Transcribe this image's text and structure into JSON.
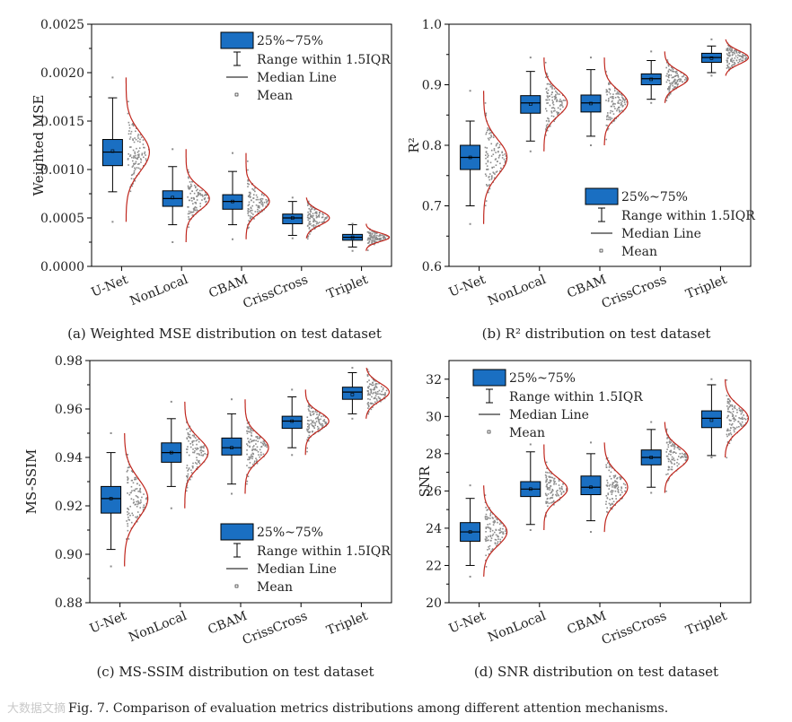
{
  "figure_caption": "Fig. 7.  Comparison of evaluation metrics distributions among different attention mechanisms.",
  "watermark": "大数据文摘",
  "legend": {
    "box_label": "25%~75%",
    "range_label": "Range within 1.5IQR",
    "median_label": "Median Line",
    "mean_label": "Mean"
  },
  "colors": {
    "box": "#1a6fc2",
    "curve": "#c0271e",
    "points": "#8c8c8c"
  },
  "chart_data": [
    {
      "type": "box",
      "id": "a",
      "caption": "(a) Weighted MSE distribution on test dataset",
      "ylabel": "Weighted MSE",
      "categories": [
        "U-Net",
        "NonLocal",
        "CBAM",
        "CrissCross",
        "Triplet"
      ],
      "ylim": [
        0,
        0.0025
      ],
      "yticks": [
        "0.0000",
        "0.0005",
        "0.0010",
        "0.0015",
        "0.0020",
        "0.0025"
      ],
      "legend_position": "top-right",
      "series": [
        {
          "name": "U-Net",
          "whisker_low": 0.00077,
          "q1": 0.00104,
          "median": 0.00118,
          "q3": 0.00131,
          "whisker_high": 0.00174,
          "mean": 0.00119,
          "dist_min": 0.00046,
          "dist_max": 0.00195
        },
        {
          "name": "NonLocal",
          "whisker_low": 0.00043,
          "q1": 0.00062,
          "median": 0.0007,
          "q3": 0.00078,
          "whisker_high": 0.00103,
          "mean": 0.00071,
          "dist_min": 0.00025,
          "dist_max": 0.00121
        },
        {
          "name": "CBAM",
          "whisker_low": 0.00043,
          "q1": 0.00059,
          "median": 0.00067,
          "q3": 0.00074,
          "whisker_high": 0.00098,
          "mean": 0.00067,
          "dist_min": 0.00028,
          "dist_max": 0.00117
        },
        {
          "name": "CrissCross",
          "whisker_low": 0.00032,
          "q1": 0.00044,
          "median": 0.0005,
          "q3": 0.00054,
          "whisker_high": 0.00067,
          "mean": 0.0005,
          "dist_min": 0.00029,
          "dist_max": 0.00071
        },
        {
          "name": "Triplet",
          "whisker_low": 0.0002,
          "q1": 0.00027,
          "median": 0.0003,
          "q3": 0.00033,
          "whisker_high": 0.00043,
          "mean": 0.0003,
          "dist_min": 0.00016,
          "dist_max": 0.00044
        }
      ]
    },
    {
      "type": "box",
      "id": "b",
      "caption": "(b) R² distribution on test dataset",
      "ylabel": "R²",
      "categories": [
        "U-Net",
        "NonLocal",
        "CBAM",
        "CrissCross",
        "Triplet"
      ],
      "ylim": [
        0.6,
        1.0
      ],
      "yticks": [
        "0.6",
        "0.7",
        "0.8",
        "0.9",
        "1.0"
      ],
      "legend_position": "bottom-right",
      "series": [
        {
          "name": "U-Net",
          "whisker_low": 0.7,
          "q1": 0.76,
          "median": 0.78,
          "q3": 0.8,
          "whisker_high": 0.84,
          "mean": 0.78,
          "dist_min": 0.67,
          "dist_max": 0.89
        },
        {
          "name": "NonLocal",
          "whisker_low": 0.807,
          "q1": 0.853,
          "median": 0.87,
          "q3": 0.882,
          "whisker_high": 0.922,
          "mean": 0.868,
          "dist_min": 0.79,
          "dist_max": 0.945
        },
        {
          "name": "CBAM",
          "whisker_low": 0.815,
          "q1": 0.855,
          "median": 0.87,
          "q3": 0.883,
          "whisker_high": 0.925,
          "mean": 0.869,
          "dist_min": 0.8,
          "dist_max": 0.945
        },
        {
          "name": "CrissCross",
          "whisker_low": 0.876,
          "q1": 0.9,
          "median": 0.91,
          "q3": 0.918,
          "whisker_high": 0.94,
          "mean": 0.909,
          "dist_min": 0.87,
          "dist_max": 0.955
        },
        {
          "name": "Triplet",
          "whisker_low": 0.92,
          "q1": 0.937,
          "median": 0.945,
          "q3": 0.952,
          "whisker_high": 0.964,
          "mean": 0.944,
          "dist_min": 0.915,
          "dist_max": 0.975
        }
      ]
    },
    {
      "type": "box",
      "id": "c",
      "caption": "(c) MS-SSIM distribution on test dataset",
      "ylabel": "MS-SSIM",
      "categories": [
        "U-Net",
        "NonLocal",
        "CBAM",
        "CrissCross",
        "Triplet"
      ],
      "ylim": [
        0.88,
        0.98
      ],
      "yticks": [
        "0.88",
        "0.90",
        "0.92",
        "0.94",
        "0.96",
        "0.98"
      ],
      "legend_position": "bottom-right",
      "series": [
        {
          "name": "U-Net",
          "whisker_low": 0.902,
          "q1": 0.917,
          "median": 0.923,
          "q3": 0.928,
          "whisker_high": 0.942,
          "mean": 0.923,
          "dist_min": 0.895,
          "dist_max": 0.95
        },
        {
          "name": "NonLocal",
          "whisker_low": 0.928,
          "q1": 0.938,
          "median": 0.942,
          "q3": 0.946,
          "whisker_high": 0.956,
          "mean": 0.942,
          "dist_min": 0.919,
          "dist_max": 0.963
        },
        {
          "name": "CBAM",
          "whisker_low": 0.929,
          "q1": 0.941,
          "median": 0.944,
          "q3": 0.948,
          "whisker_high": 0.958,
          "mean": 0.944,
          "dist_min": 0.925,
          "dist_max": 0.964
        },
        {
          "name": "CrissCross",
          "whisker_low": 0.944,
          "q1": 0.952,
          "median": 0.955,
          "q3": 0.957,
          "whisker_high": 0.965,
          "mean": 0.955,
          "dist_min": 0.941,
          "dist_max": 0.968
        },
        {
          "name": "Triplet",
          "whisker_low": 0.958,
          "q1": 0.964,
          "median": 0.967,
          "q3": 0.969,
          "whisker_high": 0.975,
          "mean": 0.966,
          "dist_min": 0.956,
          "dist_max": 0.977
        }
      ]
    },
    {
      "type": "box",
      "id": "d",
      "caption": "(d) SNR distribution on test dataset",
      "ylabel": "SNR",
      "categories": [
        "U-Net",
        "NonLocal",
        "CBAM",
        "CrissCross",
        "Triplet"
      ],
      "ylim": [
        20,
        33
      ],
      "yticks": [
        "20",
        "22",
        "24",
        "26",
        "28",
        "30",
        "32"
      ],
      "legend_position": "top-left",
      "series": [
        {
          "name": "U-Net",
          "whisker_low": 22.0,
          "q1": 23.3,
          "median": 23.8,
          "q3": 24.3,
          "whisker_high": 25.6,
          "mean": 23.8,
          "dist_min": 21.4,
          "dist_max": 26.3
        },
        {
          "name": "NonLocal",
          "whisker_low": 24.2,
          "q1": 25.7,
          "median": 26.1,
          "q3": 26.5,
          "whisker_high": 28.1,
          "mean": 26.1,
          "dist_min": 23.9,
          "dist_max": 28.5
        },
        {
          "name": "CBAM",
          "whisker_low": 24.4,
          "q1": 25.8,
          "median": 26.2,
          "q3": 26.8,
          "whisker_high": 28.0,
          "mean": 26.2,
          "dist_min": 23.8,
          "dist_max": 28.6
        },
        {
          "name": "CrissCross",
          "whisker_low": 26.2,
          "q1": 27.4,
          "median": 27.8,
          "q3": 28.2,
          "whisker_high": 29.3,
          "mean": 27.8,
          "dist_min": 25.9,
          "dist_max": 29.7
        },
        {
          "name": "Triplet",
          "whisker_low": 27.9,
          "q1": 29.4,
          "median": 29.9,
          "q3": 30.3,
          "whisker_high": 31.7,
          "mean": 29.8,
          "dist_min": 27.8,
          "dist_max": 32.0
        }
      ]
    }
  ]
}
